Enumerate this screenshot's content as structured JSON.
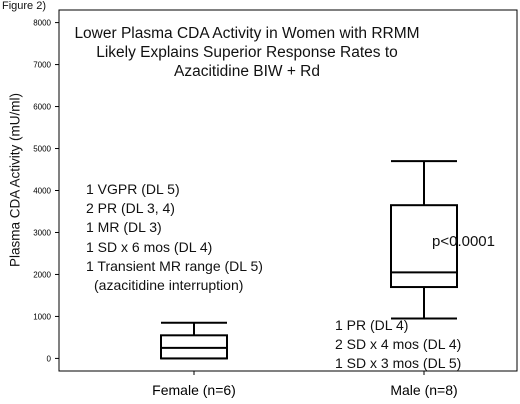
{
  "figure_label": "Figure 2)",
  "chart_data": {
    "type": "box",
    "title_lines": [
      "Lower Plasma CDA Activity in Women with RRMM",
      "Likely Explains Superior Response Rates to",
      "Azacitidine BIW + Rd"
    ],
    "ylabel": "Plasma CDA Activity (mU/ml)",
    "ylim": [
      -300,
      8300
    ],
    "yticks": [
      0,
      1000,
      2000,
      3000,
      4000,
      5000,
      6000,
      7000,
      8000
    ],
    "categories": [
      "Female (n=6)",
      "Male (n=8)"
    ],
    "boxes": [
      {
        "category": "Female (n=6)",
        "min": 0,
        "q1": 0,
        "median": 250,
        "q3": 550,
        "max": 850
      },
      {
        "category": "Male (n=8)",
        "min": 950,
        "q1": 1700,
        "median": 2050,
        "q3": 3650,
        "max": 4700
      }
    ],
    "annotations": {
      "female_responses": [
        "1 VGPR (DL 5)",
        "2 PR (DL 3, 4)",
        "1 MR (DL 3)",
        "1 SD x 6 mos (DL 4)",
        "1 Transient MR range (DL 5)",
        "(azacitidine interruption)"
      ],
      "male_responses": [
        "1 PR (DL 4)",
        "2 SD x 4 mos (DL 4)",
        "1 SD x 3 mos (DL 5)"
      ],
      "p_value": "p<0.0001"
    }
  }
}
